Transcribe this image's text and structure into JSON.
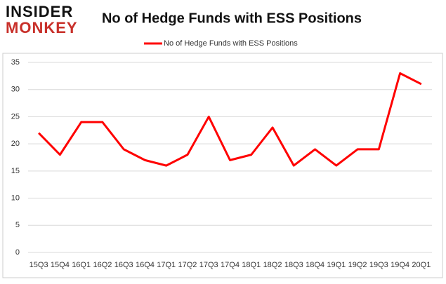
{
  "logo": {
    "top": "INSIDER",
    "bottom": "MONKEY"
  },
  "chart_data": {
    "type": "line",
    "title": "No of Hedge Funds with ESS Positions",
    "categories": [
      "15Q3",
      "15Q4",
      "16Q1",
      "16Q2",
      "16Q3",
      "16Q4",
      "17Q1",
      "17Q2",
      "17Q3",
      "17Q4",
      "18Q1",
      "18Q2",
      "18Q3",
      "18Q4",
      "19Q1",
      "19Q2",
      "19Q3",
      "19Q4",
      "20Q1"
    ],
    "series": [
      {
        "name": "No of Hedge Funds with ESS Positions",
        "color": "#ff0000",
        "values": [
          22,
          18,
          24,
          24,
          19,
          17,
          16,
          18,
          25,
          17,
          18,
          23,
          16,
          19,
          16,
          19,
          19,
          33,
          31
        ]
      }
    ],
    "ylim": [
      0,
      35
    ],
    "yticks": [
      0,
      5,
      10,
      15,
      20,
      25,
      30,
      35
    ],
    "grid": true,
    "legend": "top"
  }
}
